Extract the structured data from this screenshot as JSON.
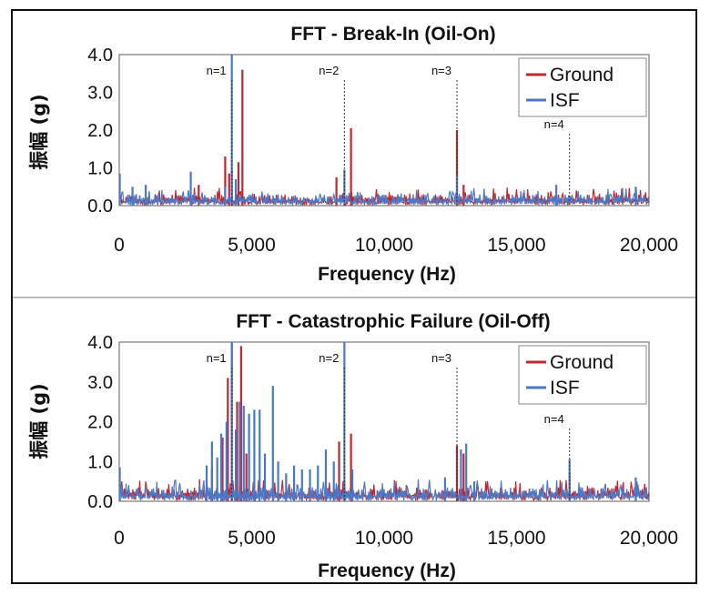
{
  "chart_data": [
    {
      "type": "line",
      "title": "FFT - Break-In (Oil-On)",
      "xlabel": "Frequency (Hz)",
      "ylabel": "振幅 (g)",
      "xlim": [
        0,
        20000
      ],
      "ylim": [
        0,
        4
      ],
      "x_ticks": [
        "0",
        "5,000",
        "10,000",
        "15,000",
        "20,000"
      ],
      "y_ticks": [
        "0.0",
        "1.0",
        "2.0",
        "3.0",
        "4.0"
      ],
      "legend": {
        "position": "top-right",
        "entries": [
          "Ground",
          "ISF"
        ]
      },
      "harmonics": [
        {
          "label": "n=1",
          "x": 4250
        },
        {
          "label": "n=2",
          "x": 8500
        },
        {
          "label": "n=3",
          "x": 12750
        },
        {
          "label": "n=4",
          "x": 17000
        }
      ],
      "noise_floor": {
        "Ground": 0.3,
        "ISF": 0.3
      },
      "series": [
        {
          "name": "Ground",
          "color": "#c0262d",
          "peaks": [
            [
              3000,
              0.55
            ],
            [
              4000,
              1.3
            ],
            [
              4150,
              0.85
            ],
            [
              4250,
              0.95
            ],
            [
              4500,
              1.15
            ],
            [
              4650,
              3.6
            ],
            [
              8200,
              0.75
            ],
            [
              8750,
              2.05
            ],
            [
              12750,
              2.0
            ],
            [
              13000,
              0.55
            ]
          ]
        },
        {
          "name": "ISF",
          "color": "#4a78c8",
          "peaks": [
            [
              20,
              0.85
            ],
            [
              500,
              0.5
            ],
            [
              1000,
              0.55
            ],
            [
              2700,
              0.9
            ],
            [
              4000,
              0.5
            ],
            [
              4250,
              4.0
            ],
            [
              4400,
              0.7
            ],
            [
              8500,
              0.95
            ],
            [
              12750,
              0.8
            ],
            [
              16500,
              0.55
            ],
            [
              19500,
              0.5
            ]
          ]
        }
      ]
    },
    {
      "type": "line",
      "title": "FFT - Catastrophic Failure (Oil-Off)",
      "xlabel": "Frequency (Hz)",
      "ylabel": "振幅 (g)",
      "xlim": [
        0,
        20000
      ],
      "ylim": [
        0,
        4
      ],
      "x_ticks": [
        "0",
        "5,000",
        "10,000",
        "15,000",
        "20,000"
      ],
      "y_ticks": [
        "0.0",
        "1.0",
        "2.0",
        "3.0",
        "4.0"
      ],
      "legend": {
        "position": "top-right",
        "entries": [
          "Ground",
          "ISF"
        ]
      },
      "harmonics": [
        {
          "label": "n=1",
          "x": 4250
        },
        {
          "label": "n=2",
          "x": 8500
        },
        {
          "label": "n=3",
          "x": 12750
        },
        {
          "label": "n=4",
          "x": 17000
        }
      ],
      "noise_floor": {
        "Ground": 0.35,
        "ISF": 0.35
      },
      "series": [
        {
          "name": "Ground",
          "color": "#c0262d",
          "peaks": [
            [
              3500,
              0.8
            ],
            [
              3900,
              1.6
            ],
            [
              4100,
              3.1
            ],
            [
              4250,
              4.0
            ],
            [
              4450,
              2.5
            ],
            [
              4600,
              3.9
            ],
            [
              4800,
              1.2
            ],
            [
              8300,
              1.5
            ],
            [
              8750,
              1.7
            ],
            [
              12750,
              1.4
            ],
            [
              13000,
              1.2
            ],
            [
              17000,
              0.7
            ]
          ]
        },
        {
          "name": "ISF",
          "color": "#4a78c8",
          "peaks": [
            [
              20,
              0.85
            ],
            [
              3300,
              0.9
            ],
            [
              3500,
              1.5
            ],
            [
              3700,
              1.1
            ],
            [
              3850,
              1.7
            ],
            [
              4050,
              2.0
            ],
            [
              4250,
              4.0
            ],
            [
              4400,
              1.8
            ],
            [
              4550,
              2.5
            ],
            [
              4700,
              2.4
            ],
            [
              4900,
              2.2
            ],
            [
              5100,
              2.3
            ],
            [
              5300,
              2.3
            ],
            [
              5500,
              1.2
            ],
            [
              5800,
              2.9
            ],
            [
              6000,
              1.0
            ],
            [
              6300,
              0.7
            ],
            [
              6600,
              0.9
            ],
            [
              6900,
              0.8
            ],
            [
              7200,
              0.8
            ],
            [
              7500,
              0.9
            ],
            [
              7800,
              1.3
            ],
            [
              8100,
              1.0
            ],
            [
              8500,
              4.0
            ],
            [
              8800,
              0.8
            ],
            [
              12300,
              0.6
            ],
            [
              12900,
              1.3
            ],
            [
              13100,
              1.45
            ],
            [
              13400,
              0.5
            ],
            [
              17000,
              1.05
            ],
            [
              19500,
              0.6
            ]
          ]
        }
      ]
    }
  ]
}
